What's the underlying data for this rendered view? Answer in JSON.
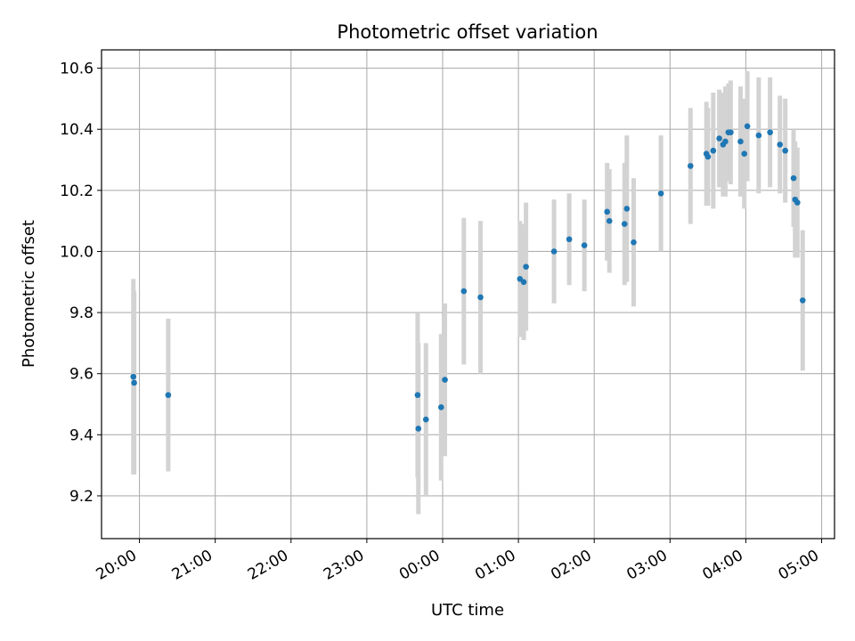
{
  "chart_data": {
    "type": "scatter",
    "title": "Photometric offset variation",
    "xlabel": "UTC time",
    "ylabel": "Photometric offset",
    "x_unit": "hours since 20:00 UTC on the first night, as on the time axis",
    "xlim": [
      -0.5,
      9.17
    ],
    "ylim": [
      9.06,
      10.66
    ],
    "x_ticks": [
      {
        "value": 0,
        "label": "20:00"
      },
      {
        "value": 1,
        "label": "21:00"
      },
      {
        "value": 2,
        "label": "22:00"
      },
      {
        "value": 3,
        "label": "23:00"
      },
      {
        "value": 4,
        "label": "00:00"
      },
      {
        "value": 5,
        "label": "01:00"
      },
      {
        "value": 6,
        "label": "02:00"
      },
      {
        "value": 7,
        "label": "03:00"
      },
      {
        "value": 8,
        "label": "04:00"
      },
      {
        "value": 9,
        "label": "05:00"
      }
    ],
    "y_ticks": [
      {
        "value": 9.2,
        "label": "9.2"
      },
      {
        "value": 9.4,
        "label": "9.4"
      },
      {
        "value": 9.6,
        "label": "9.6"
      },
      {
        "value": 9.8,
        "label": "9.8"
      },
      {
        "value": 10.0,
        "label": "10.0"
      },
      {
        "value": 10.2,
        "label": "10.2"
      },
      {
        "value": 10.4,
        "label": "10.4"
      },
      {
        "value": 10.6,
        "label": "10.6"
      }
    ],
    "grid": true,
    "point_color": "#1f77b4",
    "errorbar_color": "#d3d3d3",
    "points": [
      {
        "x": -0.08,
        "y": 9.59,
        "err": 0.32
      },
      {
        "x": -0.07,
        "y": 9.57,
        "err": 0.3
      },
      {
        "x": 0.38,
        "y": 9.53,
        "err": 0.25
      },
      {
        "x": 3.67,
        "y": 9.53,
        "err": 0.27
      },
      {
        "x": 3.68,
        "y": 9.42,
        "err": 0.28
      },
      {
        "x": 3.78,
        "y": 9.45,
        "err": 0.25
      },
      {
        "x": 3.98,
        "y": 9.49,
        "err": 0.24
      },
      {
        "x": 4.03,
        "y": 9.58,
        "err": 0.25
      },
      {
        "x": 4.28,
        "y": 9.87,
        "err": 0.24
      },
      {
        "x": 4.5,
        "y": 9.85,
        "err": 0.25
      },
      {
        "x": 5.02,
        "y": 9.91,
        "err": 0.19
      },
      {
        "x": 5.07,
        "y": 9.9,
        "err": 0.19
      },
      {
        "x": 5.1,
        "y": 9.95,
        "err": 0.21
      },
      {
        "x": 5.47,
        "y": 10.0,
        "err": 0.17
      },
      {
        "x": 5.67,
        "y": 10.04,
        "err": 0.15
      },
      {
        "x": 5.87,
        "y": 10.02,
        "err": 0.15
      },
      {
        "x": 6.17,
        "y": 10.13,
        "err": 0.16
      },
      {
        "x": 6.2,
        "y": 10.1,
        "err": 0.17
      },
      {
        "x": 6.4,
        "y": 10.09,
        "err": 0.2
      },
      {
        "x": 6.43,
        "y": 10.14,
        "err": 0.24
      },
      {
        "x": 6.52,
        "y": 10.03,
        "err": 0.21
      },
      {
        "x": 6.88,
        "y": 10.19,
        "err": 0.19
      },
      {
        "x": 7.27,
        "y": 10.28,
        "err": 0.19
      },
      {
        "x": 7.48,
        "y": 10.32,
        "err": 0.17
      },
      {
        "x": 7.5,
        "y": 10.31,
        "err": 0.16
      },
      {
        "x": 7.57,
        "y": 10.33,
        "err": 0.19
      },
      {
        "x": 7.65,
        "y": 10.37,
        "err": 0.16
      },
      {
        "x": 7.7,
        "y": 10.35,
        "err": 0.17
      },
      {
        "x": 7.73,
        "y": 10.36,
        "err": 0.18
      },
      {
        "x": 7.77,
        "y": 10.39,
        "err": 0.16
      },
      {
        "x": 7.8,
        "y": 10.39,
        "err": 0.17
      },
      {
        "x": 7.93,
        "y": 10.36,
        "err": 0.18
      },
      {
        "x": 7.98,
        "y": 10.32,
        "err": 0.18
      },
      {
        "x": 8.02,
        "y": 10.41,
        "err": 0.18
      },
      {
        "x": 8.17,
        "y": 10.38,
        "err": 0.19
      },
      {
        "x": 8.32,
        "y": 10.39,
        "err": 0.18
      },
      {
        "x": 8.45,
        "y": 10.35,
        "err": 0.16
      },
      {
        "x": 8.52,
        "y": 10.33,
        "err": 0.17
      },
      {
        "x": 8.63,
        "y": 10.24,
        "err": 0.16
      },
      {
        "x": 8.65,
        "y": 10.17,
        "err": 0.19
      },
      {
        "x": 8.68,
        "y": 10.16,
        "err": 0.18
      },
      {
        "x": 8.75,
        "y": 9.84,
        "err": 0.23
      }
    ]
  }
}
